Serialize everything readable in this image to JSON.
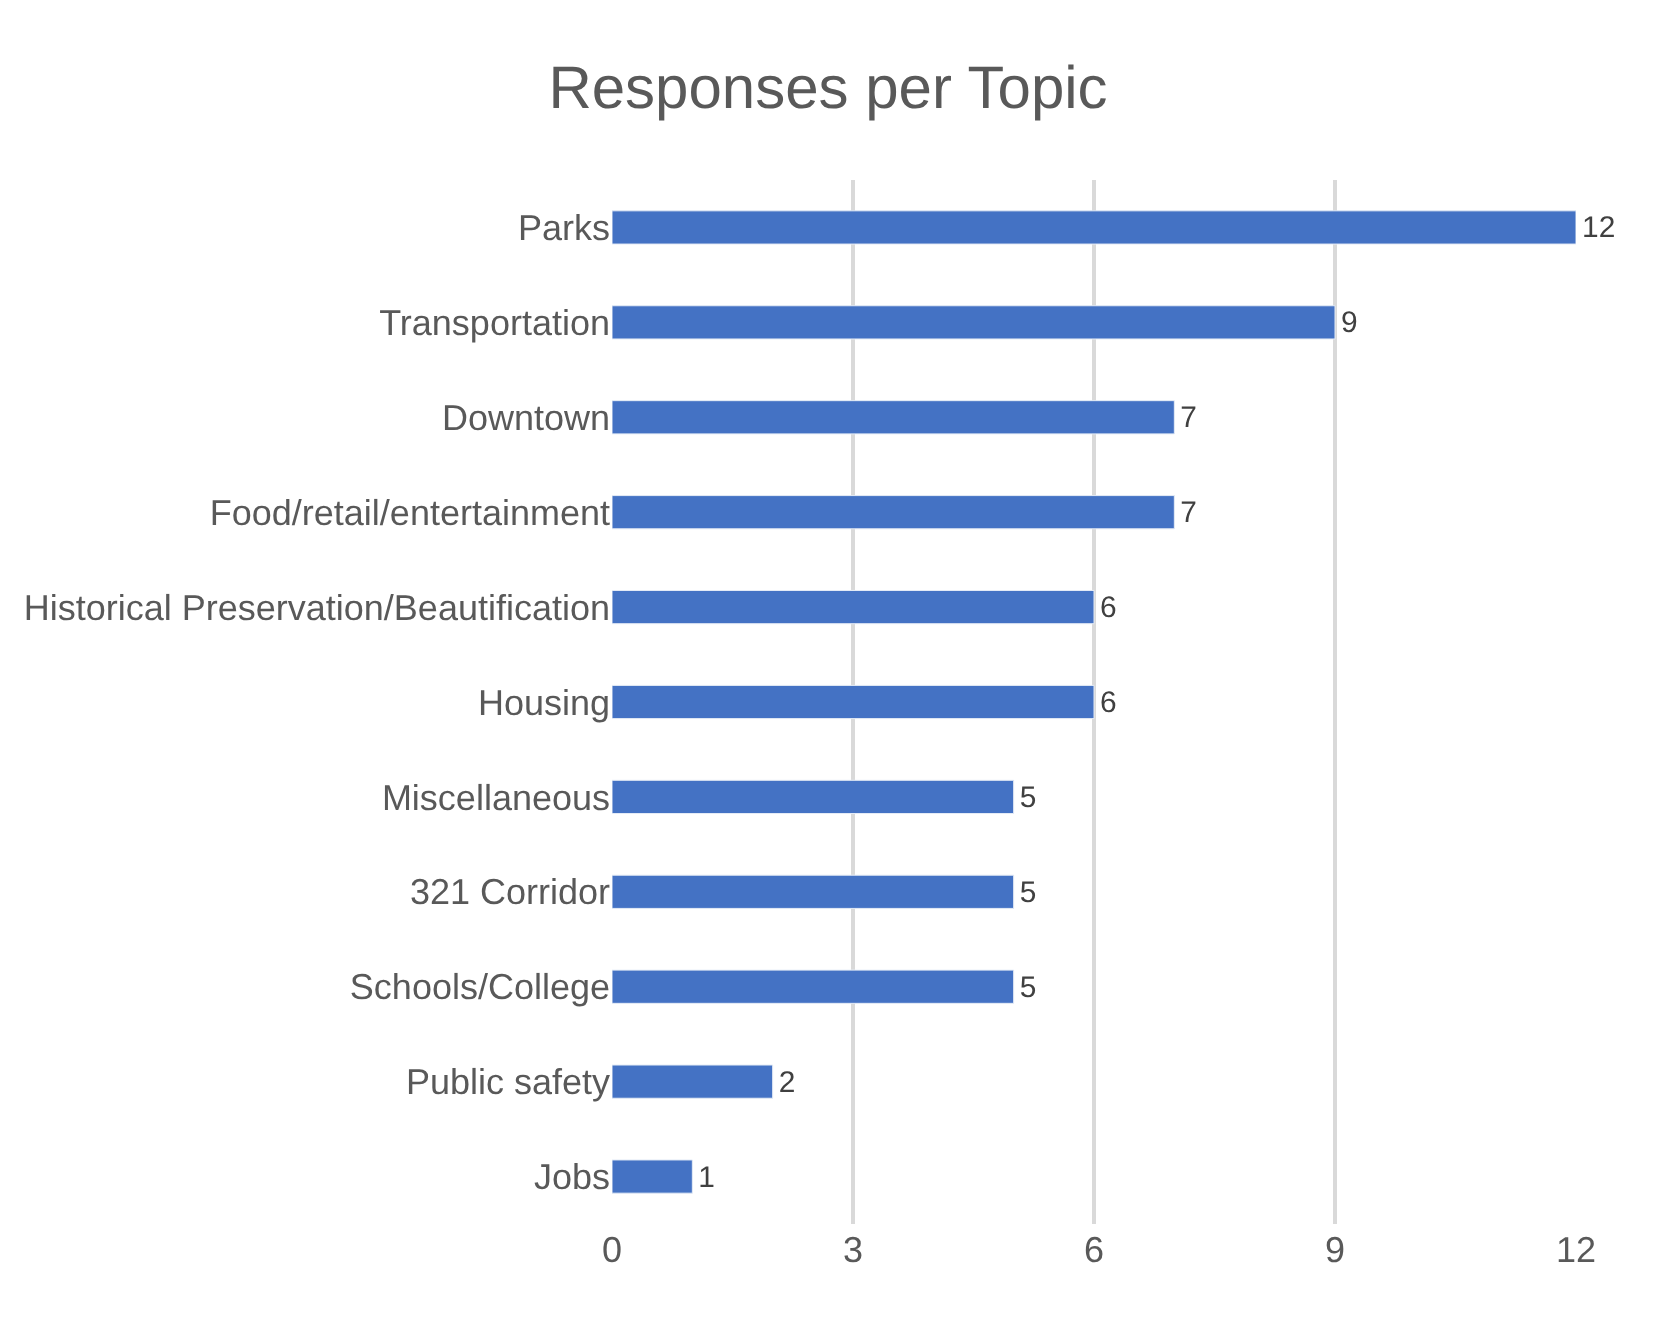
{
  "chart_data": {
    "type": "bar",
    "orientation": "horizontal",
    "title": "Responses per Topic",
    "categories": [
      "Parks",
      "Transportation",
      "Downtown",
      "Food/retail/entertainment",
      "Historical Preservation/Beautification",
      "Housing",
      "Miscellaneous",
      "321 Corridor",
      "Schools/College",
      "Public safety",
      "Jobs"
    ],
    "values": [
      12,
      9,
      7,
      7,
      6,
      6,
      5,
      5,
      5,
      2,
      1
    ],
    "color": "#4472c4",
    "xlim": [
      0,
      12
    ],
    "xticks": [
      0,
      3,
      6,
      9,
      12
    ],
    "grid": "x",
    "legend": false,
    "data_labels": true
  }
}
